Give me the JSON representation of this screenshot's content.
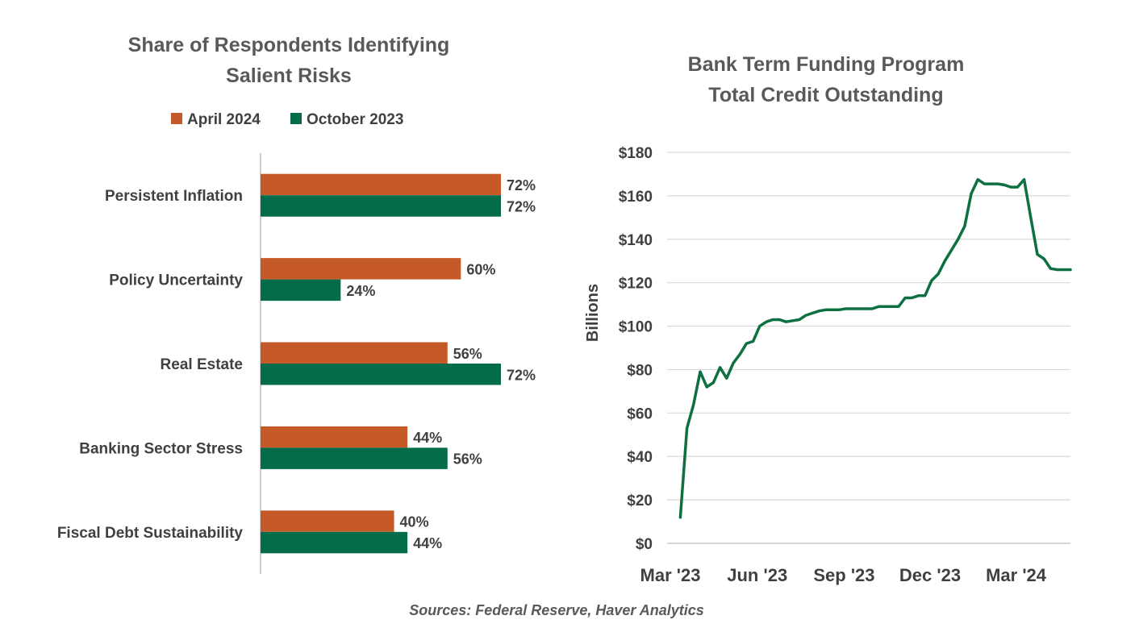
{
  "source": "Sources: Federal Reserve, Haver Analytics",
  "colors": {
    "april": "#c55a28",
    "october": "#046b4b",
    "line": "#0e7041",
    "grid": "#d9d9d9",
    "axis": "#bfbfbf"
  },
  "chart_data": [
    {
      "type": "bar",
      "orientation": "horizontal",
      "title_lines": [
        "Share of Respondents Identifying",
        "Salient Risks"
      ],
      "legend_position": "top",
      "categories": [
        "Persistent Inflation",
        "Policy Uncertainty",
        "Real Estate",
        "Banking Sector Stress",
        "Fiscal Debt Sustainability"
      ],
      "series": [
        {
          "name": "April 2024",
          "values": [
            72,
            60,
            56,
            44,
            40
          ],
          "labels": [
            "72%",
            "60%",
            "56%",
            "44%",
            "40%"
          ]
        },
        {
          "name": "October 2023",
          "values": [
            72,
            24,
            72,
            56,
            44
          ],
          "labels": [
            "72%",
            "24%",
            "72%",
            "56%",
            "44%"
          ]
        }
      ],
      "unit": "%"
    },
    {
      "type": "line",
      "title_lines": [
        "Bank Term Funding Program",
        "Total Credit Outstanding"
      ],
      "ylabel": "Billions",
      "ylim": [
        0,
        180
      ],
      "yticks": [
        0,
        20,
        40,
        60,
        80,
        100,
        120,
        140,
        160,
        180
      ],
      "ytick_labels": [
        "$0",
        "$20",
        "$40",
        "$60",
        "$80",
        "$100",
        "$120",
        "$140",
        "$160",
        "$180"
      ],
      "xtick_labels": [
        "Mar '23",
        "Jun '23",
        "Sep '23",
        "Dec '23",
        "Mar '24"
      ],
      "grid": true,
      "series": [
        {
          "x": [
            "2023-03-15",
            "2023-03-22",
            "2023-03-29",
            "2023-04-05",
            "2023-04-12",
            "2023-04-19",
            "2023-04-26",
            "2023-05-03",
            "2023-05-10",
            "2023-05-17",
            "2023-05-24",
            "2023-05-31",
            "2023-06-07",
            "2023-06-14",
            "2023-06-21",
            "2023-06-28",
            "2023-07-05",
            "2023-07-12",
            "2023-07-19",
            "2023-07-26",
            "2023-08-02",
            "2023-08-09",
            "2023-08-16",
            "2023-08-23",
            "2023-08-30",
            "2023-09-06",
            "2023-09-13",
            "2023-09-20",
            "2023-09-27",
            "2023-10-04",
            "2023-10-11",
            "2023-10-18",
            "2023-10-25",
            "2023-11-01",
            "2023-11-08",
            "2023-11-15",
            "2023-11-22",
            "2023-11-29",
            "2023-12-06",
            "2023-12-13",
            "2023-12-20",
            "2023-12-27",
            "2024-01-03",
            "2024-01-10",
            "2024-01-17",
            "2024-01-24",
            "2024-01-31",
            "2024-02-07",
            "2024-02-14",
            "2024-02-21",
            "2024-02-28",
            "2024-03-06",
            "2024-03-13",
            "2024-03-20",
            "2024-03-27",
            "2024-04-03",
            "2024-04-10",
            "2024-04-17",
            "2024-04-24",
            "2024-05-01"
          ],
          "y": [
            12,
            53,
            64,
            79,
            72,
            74,
            81,
            76,
            83,
            87,
            92,
            93,
            100,
            102,
            103,
            103,
            102,
            102.5,
            103,
            105,
            106,
            107,
            107.5,
            107.5,
            107.5,
            108,
            108,
            108,
            108,
            108,
            109,
            109,
            109,
            109,
            113,
            113,
            114,
            114,
            121,
            124,
            130,
            135,
            140,
            146,
            161,
            167.5,
            165.5,
            165.5,
            165.5,
            165,
            164,
            164,
            167.5,
            150,
            133,
            131,
            126.5,
            126,
            126,
            126
          ]
        }
      ]
    }
  ]
}
